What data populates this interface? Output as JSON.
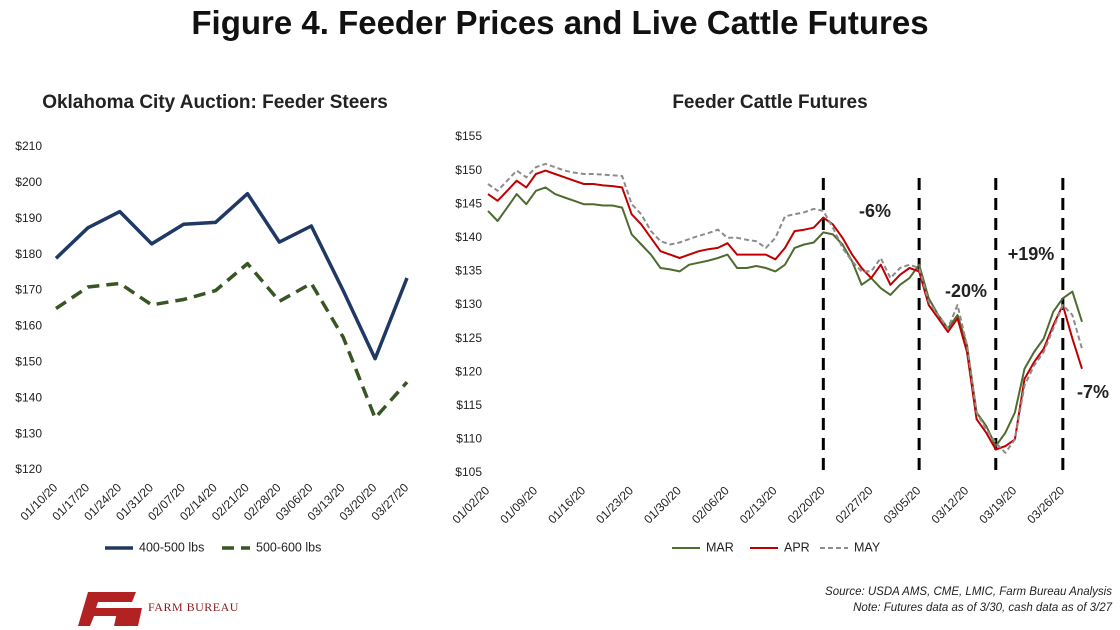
{
  "title": "Figure 4. Feeder Prices and Live Cattle Futures",
  "chart_data": [
    {
      "type": "line",
      "title": "Oklahoma City Auction: Feeder Steers",
      "categories": [
        "01/10/20",
        "01/17/20",
        "01/24/20",
        "01/31/20",
        "02/07/20",
        "02/14/20",
        "02/21/20",
        "02/28/20",
        "03/06/20",
        "03/13/20",
        "03/20/20",
        "03/27/20"
      ],
      "series": [
        {
          "name": "400-500 lbs",
          "color": "#1f3864",
          "dashed": false,
          "values": [
            179,
            187.5,
            192,
            183,
            188.5,
            189,
            197,
            183.5,
            188,
            170,
            151,
            173.5
          ]
        },
        {
          "name": "500-600 lbs",
          "color": "#375623",
          "dashed": true,
          "values": [
            165,
            171,
            172,
            166,
            167.5,
            170,
            177.5,
            167,
            172,
            157,
            134.5,
            144.5
          ]
        }
      ],
      "ylim": [
        120,
        210
      ],
      "yticks": [
        {
          "value": 120,
          "label": "$120"
        },
        {
          "value": 130,
          "label": "$130"
        },
        {
          "value": 140,
          "label": "$140"
        },
        {
          "value": 150,
          "label": "$150"
        },
        {
          "value": 160,
          "label": "$160"
        },
        {
          "value": 170,
          "label": "$170"
        },
        {
          "value": 180,
          "label": "$180"
        },
        {
          "value": 190,
          "label": "$190"
        },
        {
          "value": 200,
          "label": "$200"
        },
        {
          "value": 210,
          "label": "$210"
        }
      ],
      "grid": false,
      "legend": "bottom"
    },
    {
      "type": "line",
      "title": "Feeder Cattle Futures",
      "categories": [
        "01/02/20",
        null,
        null,
        null,
        null,
        "01/09/20",
        null,
        null,
        null,
        null,
        "01/16/20",
        null,
        null,
        null,
        null,
        "01/23/20",
        null,
        null,
        null,
        null,
        "01/30/20",
        null,
        null,
        null,
        null,
        "02/06/20",
        null,
        null,
        null,
        null,
        "02/13/20",
        null,
        null,
        null,
        null,
        "02/20/20",
        null,
        null,
        null,
        null,
        "02/27/20",
        null,
        null,
        null,
        null,
        "03/05/20",
        null,
        null,
        null,
        null,
        "03/12/20",
        null,
        null,
        null,
        null,
        "03/19/20",
        null,
        null,
        null,
        null,
        "03/26/20",
        null,
        null
      ],
      "series": [
        {
          "name": "MAR",
          "color": "#4e6b30",
          "dashed": false,
          "values": [
            144,
            142.5,
            144.5,
            146.5,
            145,
            147,
            147.5,
            146.5,
            146,
            145.5,
            145,
            145,
            144.8,
            144.8,
            144.5,
            140.5,
            139,
            137.5,
            135.5,
            135.3,
            135,
            136,
            136.3,
            136.6,
            137,
            137.5,
            135.5,
            135.5,
            135.8,
            135.5,
            135,
            136,
            138.5,
            139,
            139.3,
            140.8,
            140.5,
            139,
            136.5,
            133,
            134,
            132.5,
            131.5,
            133,
            134,
            136,
            131,
            128.5,
            126.5,
            128.5,
            124,
            114,
            112,
            109,
            111,
            114,
            120.5,
            123,
            125,
            129,
            131,
            132,
            127.5
          ]
        },
        {
          "name": "APR",
          "color": "#c00000",
          "dashed": false,
          "values": [
            146.5,
            145.5,
            147,
            148.5,
            147.5,
            149.5,
            150,
            149.5,
            149,
            148.5,
            148,
            148,
            147.8,
            147.7,
            147.5,
            143.5,
            142,
            140,
            138,
            137.5,
            137,
            137.5,
            138,
            138.3,
            138.5,
            139.2,
            137.5,
            137.5,
            137.5,
            137.5,
            136.8,
            138.5,
            141,
            141.2,
            141.5,
            143,
            142,
            140,
            137.5,
            135.5,
            134,
            136,
            133,
            134.5,
            135.5,
            135,
            130,
            128,
            126,
            128,
            123,
            113,
            111,
            108.5,
            109,
            110,
            119,
            121.5,
            123.5,
            127,
            130,
            125,
            120.5
          ]
        },
        {
          "name": "MAY",
          "color": "#8c8c8c",
          "dashed": true,
          "values": [
            148,
            147,
            148.5,
            150,
            149,
            150.5,
            151,
            150.5,
            150,
            149.7,
            149.5,
            149.5,
            149.4,
            149.3,
            149.2,
            145,
            143.5,
            141,
            139.5,
            139,
            139.3,
            139.8,
            140.3,
            140.7,
            141.2,
            140,
            140,
            139.7,
            139.5,
            138.5,
            140,
            143.2,
            143.5,
            143.8,
            144.3,
            144,
            141.5,
            138.5,
            136.5,
            135,
            135,
            137,
            134,
            135.5,
            136,
            135.5,
            130.5,
            128.5,
            126.5,
            130,
            124,
            114,
            111.5,
            109.5,
            108,
            110,
            118,
            121,
            123,
            126.5,
            130,
            128.5,
            123.5
          ]
        }
      ],
      "ylim": [
        105,
        155
      ],
      "yticks": [
        {
          "value": 105,
          "label": "$105"
        },
        {
          "value": 110,
          "label": "$110"
        },
        {
          "value": 115,
          "label": "$115"
        },
        {
          "value": 120,
          "label": "$120"
        },
        {
          "value": 125,
          "label": "$125"
        },
        {
          "value": 130,
          "label": "$130"
        },
        {
          "value": 135,
          "label": "$135"
        },
        {
          "value": 140,
          "label": "$140"
        },
        {
          "value": 145,
          "label": "$145"
        },
        {
          "value": 150,
          "label": "$150"
        },
        {
          "value": 155,
          "label": "$155"
        }
      ],
      "grid": false,
      "legend": "bottom",
      "annotations": [
        {
          "text": "-6%",
          "color": "#c00000"
        },
        {
          "text": "-20%",
          "color": "#c00000"
        },
        {
          "text": "+19%",
          "color": "#1f3864"
        },
        {
          "text": "-7%",
          "color": "#c00000"
        }
      ]
    }
  ],
  "source": [
    "Source:  USDA AMS, CME, LMIC, Farm Bureau Analysis",
    "Note: Futures data as of 3/30, cash data as of 3/27"
  ],
  "logo": "FARM BUREAU"
}
